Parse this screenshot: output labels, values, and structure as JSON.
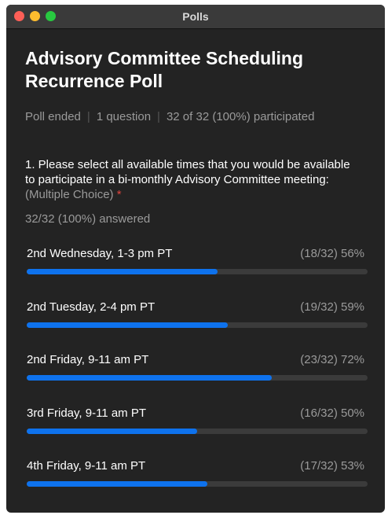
{
  "window": {
    "title": "Polls"
  },
  "poll": {
    "title": "Advisory Committee Scheduling Recurrence Poll",
    "meta": [
      "Poll ended",
      "1 question",
      "32 of 32 (100%) participated"
    ],
    "question": {
      "text": "1. Please select all available times that you would be available to participate in a bi-monthly Advisory Committee meeting:",
      "type": "(Multiple Choice)",
      "required": "*",
      "answered": "32/32 (100%) answered"
    },
    "options": [
      {
        "label": "2nd Wednesday, 1-3 pm PT",
        "result": "(18/32) 56%",
        "percent": 56
      },
      {
        "label": "2nd Tuesday, 2-4 pm PT",
        "result": "(19/32) 59%",
        "percent": 59
      },
      {
        "label": "2nd Friday, 9-11 am PT",
        "result": "(23/32) 72%",
        "percent": 72
      },
      {
        "label": "3rd Friday, 9-11 am PT",
        "result": "(16/32) 50%",
        "percent": 50
      },
      {
        "label": "4th Friday, 9-11 am PT",
        "result": "(17/32) 53%",
        "percent": 53
      }
    ]
  }
}
